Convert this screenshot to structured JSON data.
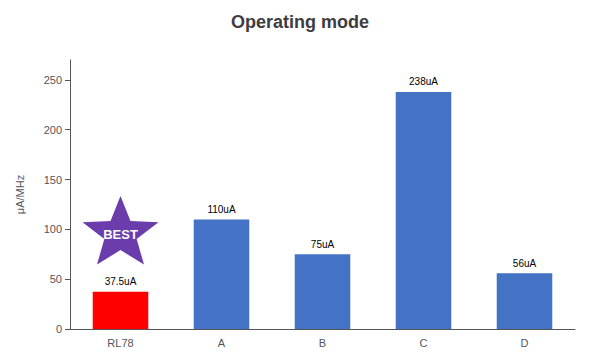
{
  "chart_data": {
    "type": "bar",
    "title": "Operating mode",
    "ylabel": "μA/MHz",
    "categories": [
      "RL78",
      "A",
      "B",
      "C",
      "D"
    ],
    "values": [
      37.5,
      110,
      75,
      238,
      56
    ],
    "value_labels": [
      "37.5uA",
      "110uA",
      "75uA",
      "238uA",
      "56uA"
    ],
    "colors": [
      "#ff0000",
      "#4472c4",
      "#4472c4",
      "#4472c4",
      "#4472c4"
    ],
    "ylim": [
      0,
      270
    ],
    "yticks": [
      0,
      50,
      100,
      150,
      200,
      250
    ],
    "grid": false,
    "data_labels": true,
    "annotations": [
      {
        "text": "BEST",
        "x": "RL78",
        "y": 95,
        "color": "#6a3cac",
        "marker": "star"
      }
    ]
  }
}
